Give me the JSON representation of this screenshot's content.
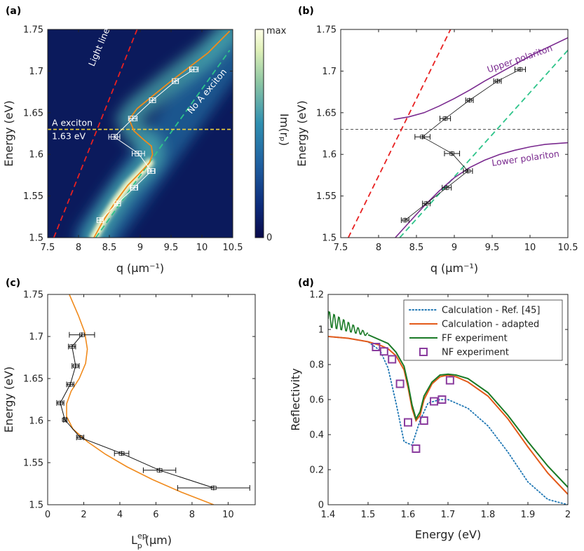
{
  "chart_data": [
    {
      "panel": "(a)",
      "type": "heatmap",
      "xlabel": "q (μm⁻¹)",
      "ylabel": "Energy (eV)",
      "xlim": [
        7.5,
        10.5
      ],
      "ylim": [
        1.5,
        1.75
      ],
      "xticks": [
        "7.5",
        "8",
        "8.5",
        "9",
        "9.5",
        "10",
        "10.5"
      ],
      "yticks": [
        "1.5",
        "1.55",
        "1.6",
        "1.65",
        "1.7",
        "1.75"
      ],
      "colorbar": {
        "label": "Im(rₚ)",
        "top": "max",
        "bottom": "0"
      },
      "annotations": {
        "light_line": "Light line",
        "no_a_exciton": "No A exciton",
        "a_exciton_1": "A exciton",
        "a_exciton_2": "1.63 eV"
      },
      "exciton_energy": 1.63,
      "light_line": {
        "x": [
          7.6,
          8.95
        ],
        "y": [
          1.5,
          1.75
        ]
      },
      "no_exciton_line": {
        "x": [
          8.28,
          10.45
        ],
        "y": [
          1.5,
          1.725
        ]
      },
      "dispersion_curve": {
        "x": [
          8.25,
          8.4,
          8.6,
          8.8,
          9.0,
          9.15,
          9.2,
          9.18,
          9.05,
          8.9,
          8.82,
          8.95,
          9.2,
          9.5,
          9.8,
          10.1,
          10.45
        ],
        "y": [
          1.5,
          1.52,
          1.543,
          1.563,
          1.578,
          1.59,
          1.6,
          1.61,
          1.618,
          1.628,
          1.642,
          1.655,
          1.67,
          1.688,
          1.705,
          1.722,
          1.748
        ]
      },
      "measured": {
        "x": [
          8.35,
          8.63,
          8.9,
          9.18,
          8.97,
          8.58,
          8.88,
          9.2,
          9.57,
          9.87
        ],
        "y": [
          1.521,
          1.541,
          1.56,
          1.58,
          1.601,
          1.621,
          1.643,
          1.665,
          1.688,
          1.702
        ],
        "xerr": [
          0.05,
          0.05,
          0.06,
          0.06,
          0.1,
          0.09,
          0.07,
          0.05,
          0.05,
          0.07
        ]
      }
    },
    {
      "panel": "(b)",
      "type": "line",
      "xlabel": "q (μm⁻¹)",
      "ylabel": "Energy (eV)",
      "xlim": [
        7.5,
        10.5
      ],
      "ylim": [
        1.5,
        1.75
      ],
      "xticks": [
        "7.5",
        "8",
        "8.5",
        "9",
        "9.5",
        "10",
        "10.5"
      ],
      "yticks": [
        "1.5",
        "1.55",
        "1.6",
        "1.65",
        "1.7",
        "1.75"
      ],
      "annotations": {
        "upper": "Upper polariton",
        "lower": "Lower polariton"
      },
      "exciton_energy": 1.63,
      "light_line": {
        "x": [
          7.6,
          8.95
        ],
        "y": [
          1.5,
          1.75
        ]
      },
      "no_exciton_line": {
        "x": [
          8.28,
          10.5
        ],
        "y": [
          1.5,
          1.725
        ]
      },
      "upper_polariton": {
        "x": [
          8.2,
          8.4,
          8.6,
          8.8,
          9.0,
          9.2,
          9.4,
          9.6,
          9.8,
          10.0,
          10.2,
          10.5
        ],
        "y": [
          1.642,
          1.645,
          1.65,
          1.658,
          1.667,
          1.677,
          1.688,
          1.698,
          1.708,
          1.718,
          1.727,
          1.74
        ]
      },
      "lower_polariton": {
        "x": [
          8.22,
          8.4,
          8.6,
          8.8,
          9.0,
          9.2,
          9.4,
          9.6,
          9.8,
          10.0,
          10.2,
          10.5
        ],
        "y": [
          1.5,
          1.518,
          1.538,
          1.556,
          1.572,
          1.584,
          1.593,
          1.6,
          1.605,
          1.609,
          1.612,
          1.614
        ]
      },
      "measured": {
        "x": [
          8.35,
          8.63,
          8.9,
          9.18,
          8.97,
          8.58,
          8.88,
          9.2,
          9.57,
          9.87
        ],
        "y": [
          1.521,
          1.541,
          1.56,
          1.58,
          1.601,
          1.621,
          1.643,
          1.665,
          1.688,
          1.702
        ],
        "xerr": [
          0.05,
          0.05,
          0.06,
          0.06,
          0.1,
          0.1,
          0.07,
          0.05,
          0.05,
          0.07
        ]
      }
    },
    {
      "panel": "(c)",
      "type": "line",
      "xlabel_main": "L",
      "xlabel_sup": "ep",
      "xlabel_sub": "p",
      "xlabel_unit": "(μm)",
      "ylabel": "Energy (eV)",
      "xlim": [
        0,
        11.5
      ],
      "ylim": [
        1.5,
        1.75
      ],
      "xticks": [
        "0",
        "2",
        "4",
        "6",
        "8",
        "10"
      ],
      "yticks": [
        "1.5",
        "1.55",
        "1.6",
        "1.65",
        "1.7",
        "1.75"
      ],
      "model_curve": {
        "x": [
          9.2,
          7.4,
          5.8,
          4.4,
          3.2,
          2.2,
          1.4,
          1.05,
          1.05,
          1.3,
          1.75,
          2.1,
          2.2,
          2.05,
          1.7,
          1.2
        ],
        "y": [
          1.5,
          1.515,
          1.53,
          1.545,
          1.56,
          1.575,
          1.59,
          1.605,
          1.62,
          1.635,
          1.65,
          1.668,
          1.685,
          1.705,
          1.725,
          1.75
        ]
      },
      "measured": {
        "x": [
          9.2,
          6.2,
          4.1,
          1.8,
          0.95,
          0.7,
          1.25,
          1.55,
          1.35,
          1.9
        ],
        "y": [
          1.52,
          1.541,
          1.561,
          1.58,
          1.601,
          1.621,
          1.643,
          1.665,
          1.688,
          1.702
        ],
        "xerr": [
          2.0,
          0.9,
          0.4,
          0.2,
          0.08,
          0.2,
          0.2,
          0.2,
          0.2,
          0.7
        ]
      }
    },
    {
      "panel": "(d)",
      "type": "line",
      "xlabel": "Energy (eV)",
      "ylabel": "Reflectivity",
      "xlim": [
        1.4,
        2.0
      ],
      "ylim": [
        0,
        1.2
      ],
      "xticks": [
        "1.4",
        "1.5",
        "1.6",
        "1.7",
        "1.8",
        "1.9",
        "2"
      ],
      "yticks": [
        "0",
        "0.2",
        "0.4",
        "0.6",
        "0.8",
        "1",
        "1.2"
      ],
      "legend_position": "top-right",
      "series": [
        {
          "name": "Calculation - Ref. [45]",
          "color": "#1f77b4",
          "style": "dotted",
          "x": [
            1.4,
            1.45,
            1.5,
            1.53,
            1.55,
            1.57,
            1.59,
            1.61,
            1.63,
            1.65,
            1.68,
            1.7,
            1.72,
            1.75,
            1.8,
            1.85,
            1.9,
            1.95,
            2.0
          ],
          "y": [
            0.96,
            0.95,
            0.93,
            0.88,
            0.78,
            0.58,
            0.36,
            0.34,
            0.48,
            0.58,
            0.6,
            0.6,
            0.58,
            0.55,
            0.45,
            0.3,
            0.13,
            0.03,
            0.0
          ]
        },
        {
          "name": "Calculation - adapted",
          "color": "#e35a1a",
          "style": "solid",
          "x": [
            1.4,
            1.45,
            1.5,
            1.53,
            1.55,
            1.57,
            1.59,
            1.6,
            1.61,
            1.62,
            1.63,
            1.64,
            1.66,
            1.68,
            1.7,
            1.72,
            1.75,
            1.8,
            1.85,
            1.9,
            1.95,
            2.0
          ],
          "y": [
            0.96,
            0.95,
            0.93,
            0.91,
            0.89,
            0.85,
            0.77,
            0.67,
            0.55,
            0.48,
            0.51,
            0.6,
            0.69,
            0.73,
            0.74,
            0.73,
            0.7,
            0.62,
            0.49,
            0.33,
            0.18,
            0.06
          ]
        },
        {
          "name": "FF experiment",
          "color": "#1a7a26",
          "style": "solid",
          "x": [
            1.5,
            1.53,
            1.55,
            1.57,
            1.59,
            1.6,
            1.61,
            1.62,
            1.63,
            1.64,
            1.66,
            1.68,
            1.7,
            1.72,
            1.75,
            1.8,
            1.85,
            1.9,
            1.95,
            2.0
          ],
          "y": [
            0.97,
            0.94,
            0.92,
            0.87,
            0.79,
            0.69,
            0.57,
            0.49,
            0.53,
            0.62,
            0.7,
            0.74,
            0.745,
            0.74,
            0.72,
            0.64,
            0.51,
            0.36,
            0.22,
            0.1
          ]
        },
        {
          "name": "NF experiment",
          "color": "#8a3c9e",
          "style": "markers",
          "x": [
            1.52,
            1.54,
            1.56,
            1.58,
            1.6,
            1.62,
            1.64,
            1.665,
            1.685,
            1.705
          ],
          "y": [
            0.9,
            0.875,
            0.83,
            0.69,
            0.47,
            0.32,
            0.48,
            0.59,
            0.6,
            0.71
          ]
        }
      ]
    }
  ]
}
